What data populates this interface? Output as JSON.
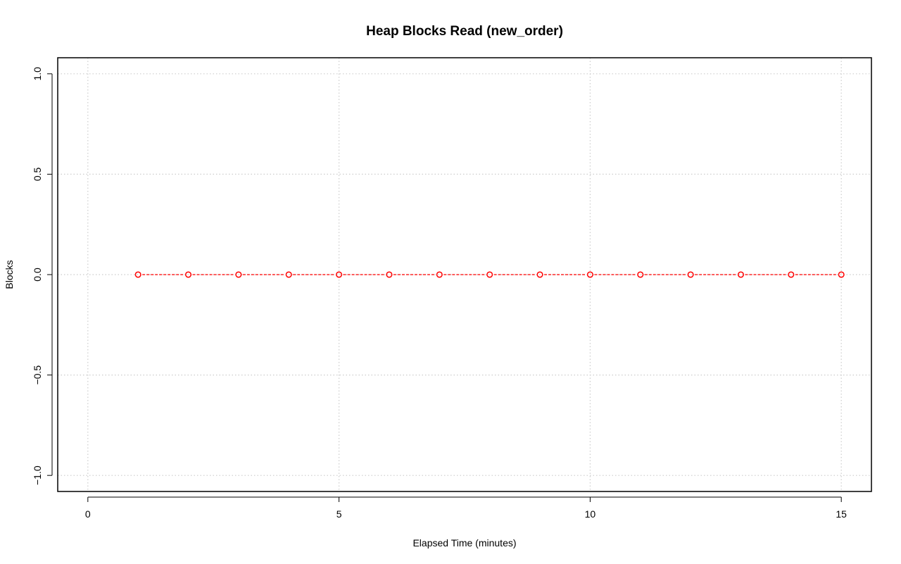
{
  "chart_data": {
    "type": "line",
    "title": "Heap Blocks Read (new_order)",
    "xlabel": "Elapsed Time (minutes)",
    "ylabel": "Blocks",
    "xlim": [
      -0.6,
      15.6
    ],
    "ylim": [
      -1.08,
      1.08
    ],
    "x_ticks": [
      0,
      5,
      10,
      15
    ],
    "x_tick_labels": [
      "0",
      "5",
      "10",
      "15"
    ],
    "y_ticks": [
      -1.0,
      -0.5,
      0.0,
      0.5,
      1.0
    ],
    "y_tick_labels": [
      "−1.0",
      "−0.5",
      "0.0",
      "0.5",
      "1.0"
    ],
    "grid": true,
    "series": [
      {
        "color": "#ff0000",
        "line_style": "dashed",
        "marker": "open-circle",
        "x": [
          1,
          2,
          3,
          4,
          5,
          6,
          7,
          8,
          9,
          10,
          11,
          12,
          13,
          14,
          15
        ],
        "y": [
          0,
          0,
          0,
          0,
          0,
          0,
          0,
          0,
          0,
          0,
          0,
          0,
          0,
          0,
          0
        ]
      }
    ]
  }
}
